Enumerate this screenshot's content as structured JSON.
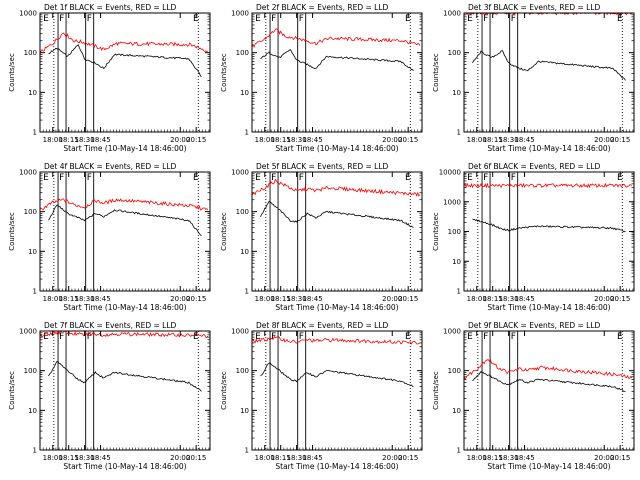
{
  "chart_data": [
    {
      "type": "line",
      "title": "Det 1f BLACK = Events, RED = LLD",
      "xlabel": "Start Time (10-May-14 18:46:00)",
      "ylabel": "Counts/sec",
      "xlim": [
        "17:48",
        "20:28"
      ],
      "ylim": [
        1,
        1000
      ],
      "yscale": "log",
      "x_ticks": [
        "18:00",
        "18:15",
        "18:30",
        "18:45",
        "20:00",
        "20:15"
      ],
      "y_ticks": [
        "1",
        "10",
        "100",
        "1000"
      ],
      "markers": [
        {
          "label": "E",
          "time": "17:50"
        },
        {
          "label": "F",
          "time": "18:05"
        },
        {
          "label": "F",
          "time": "18:31"
        },
        {
          "label": "E",
          "time": "20:11"
        }
      ],
      "series": [
        {
          "color": "#000000",
          "x": [
            "17:56",
            "18:04",
            "18:14",
            "18:24",
            "18:30",
            "18:40",
            "18:48",
            "18:58",
            "20:08",
            "20:20"
          ],
          "values": [
            95,
            130,
            80,
            160,
            70,
            55,
            40,
            90,
            70,
            25
          ]
        },
        {
          "color": "#ff0000",
          "x": [
            "17:48",
            "18:00",
            "18:10",
            "18:20",
            "18:30",
            "18:40",
            "18:48",
            "19:00",
            "20:10",
            "20:26"
          ],
          "values": [
            100,
            170,
            320,
            200,
            180,
            145,
            120,
            170,
            160,
            110
          ]
        }
      ]
    },
    {
      "type": "line",
      "title": "Det 2f BLACK = Events, RED = LLD",
      "xlabel": "Start Time (10-May-14 18:46:00)",
      "ylabel": "Counts/sec",
      "xlim": [
        "17:48",
        "20:28"
      ],
      "ylim": [
        1,
        1000
      ],
      "yscale": "log",
      "x_ticks": [
        "18:00",
        "18:15",
        "18:30",
        "18:45",
        "20:00",
        "20:15"
      ],
      "y_ticks": [
        "1",
        "10",
        "100",
        "1000"
      ],
      "markers": [
        {
          "label": "E",
          "time": "17:50"
        },
        {
          "label": "F",
          "time": "18:05"
        },
        {
          "label": "F",
          "time": "18:31"
        },
        {
          "label": "E",
          "time": "20:11"
        }
      ],
      "series": [
        {
          "color": "#000000",
          "x": [
            "17:56",
            "18:04",
            "18:14",
            "18:24",
            "18:30",
            "18:40",
            "18:48",
            "18:58",
            "20:08",
            "20:20"
          ],
          "values": [
            70,
            100,
            75,
            120,
            65,
            50,
            40,
            80,
            60,
            35
          ]
        },
        {
          "color": "#ff0000",
          "x": [
            "17:48",
            "18:00",
            "18:10",
            "18:20",
            "18:30",
            "18:40",
            "18:48",
            "19:00",
            "20:10",
            "20:26"
          ],
          "values": [
            140,
            220,
            380,
            260,
            230,
            200,
            170,
            230,
            200,
            150
          ]
        }
      ]
    },
    {
      "type": "line",
      "title": "Det 3f BLACK = Events, RED = LLD",
      "xlabel": "Start Time (10-May-14 18:46:00)",
      "ylabel": "Counts/sec",
      "xlim": [
        "17:48",
        "20:28"
      ],
      "ylim": [
        1,
        1000
      ],
      "yscale": "log",
      "x_ticks": [
        "18:00",
        "18:15",
        "18:30",
        "18:45",
        "20:00",
        "20:15"
      ],
      "y_ticks": [
        "1",
        "10",
        "100",
        "1000"
      ],
      "markers": [
        {
          "label": "E",
          "time": "17:50"
        },
        {
          "label": "F",
          "time": "18:05"
        },
        {
          "label": "F",
          "time": "18:31"
        },
        {
          "label": "E",
          "time": "20:11"
        }
      ],
      "series": [
        {
          "color": "#000000",
          "x": [
            "17:56",
            "18:04",
            "18:14",
            "18:24",
            "18:30",
            "18:40",
            "18:48",
            "18:58",
            "20:08",
            "20:20"
          ],
          "values": [
            55,
            105,
            75,
            110,
            55,
            40,
            35,
            60,
            40,
            20
          ]
        },
        {
          "color": "#ff0000",
          "x": [
            "17:48",
            "18:00",
            "18:10",
            "18:20",
            "18:30",
            "18:40",
            "18:48",
            "19:00",
            "20:10",
            "20:26"
          ],
          "values": [
            1000,
            1000,
            1000,
            1000,
            1000,
            1000,
            1000,
            1000,
            1000,
            1000
          ]
        }
      ]
    },
    {
      "type": "line",
      "title": "Det 4f BLACK = Events, RED = LLD",
      "xlabel": "Start Time (10-May-14 18:46:00)",
      "ylabel": "Counts/sec",
      "xlim": [
        "17:48",
        "20:28"
      ],
      "ylim": [
        1,
        1000
      ],
      "yscale": "log",
      "x_ticks": [
        "18:00",
        "18:15",
        "18:30",
        "18:45",
        "20:00",
        "20:15"
      ],
      "y_ticks": [
        "1",
        "10",
        "100",
        "1000"
      ],
      "markers": [
        {
          "label": "E",
          "time": "17:50"
        },
        {
          "label": "F",
          "time": "18:05"
        },
        {
          "label": "F",
          "time": "18:31"
        },
        {
          "label": "E",
          "time": "20:11"
        }
      ],
      "series": [
        {
          "color": "#000000",
          "x": [
            "17:56",
            "18:04",
            "18:14",
            "18:24",
            "18:30",
            "18:40",
            "18:48",
            "18:58",
            "20:08",
            "20:20"
          ],
          "values": [
            60,
            150,
            90,
            70,
            60,
            90,
            75,
            110,
            60,
            25
          ]
        },
        {
          "color": "#ff0000",
          "x": [
            "17:48",
            "18:00",
            "18:10",
            "18:20",
            "18:30",
            "18:40",
            "18:48",
            "19:00",
            "20:10",
            "20:26"
          ],
          "values": [
            110,
            170,
            200,
            150,
            130,
            190,
            165,
            200,
            140,
            110
          ]
        }
      ]
    },
    {
      "type": "line",
      "title": "Det 5f BLACK = Events, RED = LLD",
      "xlabel": "Start Time (10-May-14 18:46:00)",
      "ylabel": "Counts/sec",
      "xlim": [
        "17:48",
        "20:28"
      ],
      "ylim": [
        1,
        1000
      ],
      "yscale": "log",
      "x_ticks": [
        "18:00",
        "18:15",
        "18:30",
        "18:45",
        "20:00",
        "20:15"
      ],
      "y_ticks": [
        "1",
        "10",
        "100",
        "1000"
      ],
      "markers": [
        {
          "label": "E",
          "time": "17:50"
        },
        {
          "label": "F",
          "time": "18:05"
        },
        {
          "label": "F",
          "time": "18:31"
        },
        {
          "label": "E",
          "time": "20:11"
        }
      ],
      "series": [
        {
          "color": "#000000",
          "x": [
            "17:56",
            "18:04",
            "18:14",
            "18:24",
            "18:30",
            "18:40",
            "18:48",
            "18:58",
            "20:08",
            "20:20"
          ],
          "values": [
            75,
            180,
            110,
            60,
            55,
            90,
            70,
            100,
            60,
            40
          ]
        },
        {
          "color": "#ff0000",
          "x": [
            "17:48",
            "18:00",
            "18:10",
            "18:20",
            "18:30",
            "18:40",
            "18:48",
            "19:00",
            "20:10",
            "20:26"
          ],
          "values": [
            260,
            400,
            600,
            450,
            330,
            380,
            340,
            400,
            290,
            270
          ]
        }
      ]
    },
    {
      "type": "line",
      "title": "Det 6f BLACK = Events, RED = LLD",
      "xlabel": "Start Time (10-May-14 18:46:00)",
      "ylabel": "Counts/sec",
      "xlim": [
        "17:48",
        "20:28"
      ],
      "ylim": [
        1,
        10000
      ],
      "yscale": "log",
      "x_ticks": [
        "18:00",
        "18:15",
        "18:30",
        "18:45",
        "20:00",
        "20:15"
      ],
      "y_ticks": [
        "1",
        "10",
        "100",
        "1000",
        "10000"
      ],
      "markers": [
        {
          "label": "E",
          "time": "17:50"
        },
        {
          "label": "F",
          "time": "18:05"
        },
        {
          "label": "F",
          "time": "18:31"
        },
        {
          "label": "E",
          "time": "20:11"
        }
      ],
      "series": [
        {
          "color": "#000000",
          "x": [
            "17:56",
            "18:04",
            "18:14",
            "18:24",
            "18:30",
            "18:40",
            "18:48",
            "18:58",
            "20:08",
            "20:20"
          ],
          "values": [
            250,
            220,
            170,
            120,
            110,
            130,
            140,
            150,
            130,
            100
          ]
        },
        {
          "color": "#ff0000",
          "x": [
            "17:48",
            "18:00",
            "18:10",
            "18:20",
            "18:30",
            "18:40",
            "18:48",
            "19:00",
            "20:10",
            "20:26"
          ],
          "values": [
            3500,
            3500,
            3500,
            3500,
            3500,
            3500,
            3500,
            3500,
            3500,
            3500
          ]
        }
      ]
    },
    {
      "type": "line",
      "title": "Det 7f BLACK = Events, RED = LLD",
      "xlabel": "Start Time (10-May-14 18:46:00)",
      "ylabel": "Counts/sec",
      "xlim": [
        "17:48",
        "20:28"
      ],
      "ylim": [
        1,
        1000
      ],
      "yscale": "log",
      "x_ticks": [
        "18:00",
        "18:15",
        "18:30",
        "18:45",
        "20:00",
        "20:15"
      ],
      "y_ticks": [
        "1",
        "10",
        "100",
        "1000"
      ],
      "markers": [
        {
          "label": "E",
          "time": "17:50"
        },
        {
          "label": "F",
          "time": "18:05"
        },
        {
          "label": "F",
          "time": "18:31"
        },
        {
          "label": "E",
          "time": "20:11"
        }
      ],
      "series": [
        {
          "color": "#000000",
          "x": [
            "17:56",
            "18:04",
            "18:14",
            "18:24",
            "18:30",
            "18:40",
            "18:48",
            "18:58",
            "20:08",
            "20:20"
          ],
          "values": [
            70,
            170,
            100,
            60,
            50,
            90,
            65,
            90,
            50,
            30
          ]
        },
        {
          "color": "#ff0000",
          "x": [
            "17:48",
            "18:00",
            "18:10",
            "18:20",
            "18:30",
            "18:40",
            "18:48",
            "19:00",
            "20:10",
            "20:26"
          ],
          "values": [
            750,
            900,
            950,
            850,
            800,
            850,
            800,
            850,
            780,
            750
          ]
        }
      ]
    },
    {
      "type": "line",
      "title": "Det 8f BLACK = Events, RED = LLD",
      "xlabel": "Start Time (10-May-14 18:46:00)",
      "ylabel": "Counts/sec",
      "xlim": [
        "17:48",
        "20:28"
      ],
      "ylim": [
        1,
        1000
      ],
      "yscale": "log",
      "x_ticks": [
        "18:00",
        "18:15",
        "18:30",
        "18:45",
        "20:00",
        "20:15"
      ],
      "y_ticks": [
        "1",
        "10",
        "100",
        "1000"
      ],
      "markers": [
        {
          "label": "E",
          "time": "17:50"
        },
        {
          "label": "F",
          "time": "18:05"
        },
        {
          "label": "F",
          "time": "18:31"
        },
        {
          "label": "E",
          "time": "20:11"
        }
      ],
      "series": [
        {
          "color": "#000000",
          "x": [
            "17:56",
            "18:04",
            "18:14",
            "18:24",
            "18:30",
            "18:40",
            "18:48",
            "18:58",
            "20:08",
            "20:20"
          ],
          "values": [
            70,
            160,
            100,
            60,
            55,
            90,
            70,
            100,
            55,
            40
          ]
        },
        {
          "color": "#ff0000",
          "x": [
            "17:48",
            "18:00",
            "18:10",
            "18:20",
            "18:30",
            "18:40",
            "18:48",
            "19:00",
            "20:10",
            "20:26"
          ],
          "values": [
            550,
            600,
            680,
            580,
            520,
            600,
            560,
            600,
            520,
            500
          ]
        }
      ]
    },
    {
      "type": "line",
      "title": "Det 9f BLACK = Events, RED = LLD",
      "xlabel": "Start Time (10-May-14 18:46:00)",
      "ylabel": "Counts/sec",
      "xlim": [
        "17:48",
        "20:28"
      ],
      "ylim": [
        1,
        1000
      ],
      "yscale": "log",
      "x_ticks": [
        "18:00",
        "18:15",
        "18:30",
        "18:45",
        "20:00",
        "20:15"
      ],
      "y_ticks": [
        "1",
        "10",
        "100",
        "1000"
      ],
      "markers": [
        {
          "label": "E",
          "time": "17:50"
        },
        {
          "label": "F",
          "time": "18:05"
        },
        {
          "label": "F",
          "time": "18:31"
        },
        {
          "label": "E",
          "time": "20:11"
        }
      ],
      "series": [
        {
          "color": "#000000",
          "x": [
            "17:56",
            "18:04",
            "18:14",
            "18:24",
            "18:30",
            "18:40",
            "18:48",
            "18:58",
            "20:08",
            "20:20"
          ],
          "values": [
            55,
            95,
            70,
            50,
            45,
            60,
            50,
            60,
            40,
            30
          ]
        },
        {
          "color": "#ff0000",
          "x": [
            "17:48",
            "18:00",
            "18:10",
            "18:20",
            "18:30",
            "18:40",
            "18:48",
            "19:00",
            "20:10",
            "20:26"
          ],
          "values": [
            65,
            110,
            200,
            120,
            90,
            110,
            100,
            120,
            80,
            65
          ]
        }
      ]
    }
  ]
}
